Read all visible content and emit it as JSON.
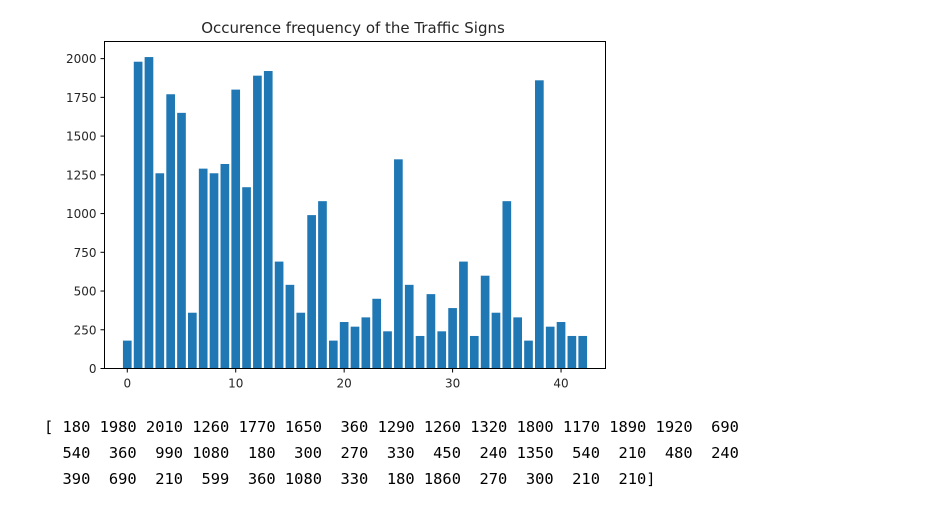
{
  "chart_data": {
    "type": "bar",
    "title": "Occurence frequency of the Traffic Signs",
    "xlabel": "",
    "ylabel": "",
    "x": [
      0,
      1,
      2,
      3,
      4,
      5,
      6,
      7,
      8,
      9,
      10,
      11,
      12,
      13,
      14,
      15,
      16,
      17,
      18,
      19,
      20,
      21,
      22,
      23,
      24,
      25,
      26,
      27,
      28,
      29,
      30,
      31,
      32,
      33,
      34,
      35,
      36,
      37,
      38,
      39,
      40,
      41,
      42
    ],
    "values": [
      180,
      1980,
      2010,
      1260,
      1770,
      1650,
      360,
      1290,
      1260,
      1320,
      1800,
      1170,
      1890,
      1920,
      690,
      540,
      360,
      990,
      1080,
      180,
      300,
      270,
      330,
      450,
      240,
      1350,
      540,
      210,
      480,
      240,
      390,
      690,
      210,
      599,
      360,
      1080,
      330,
      180,
      1860,
      270,
      300,
      210,
      210
    ],
    "bar_color": "#1f77b4",
    "xlim": [
      -2.1,
      44.1
    ],
    "ylim": [
      0,
      2110.5
    ],
    "xticks": [
      "0",
      "10",
      "20",
      "30",
      "40"
    ],
    "yticks": [
      "0",
      "250",
      "500",
      "750",
      "1000",
      "1250",
      "1500",
      "1750",
      "2000"
    ],
    "grid": false,
    "legend": false
  },
  "output": {
    "lines": [
      "[ 180 1980 2010 1260 1770 1650  360 1290 1260 1320 1800 1170 1890 1920  690",
      "  540  360  990 1080  180  300  270  330  450  240 1350  540  210  480  240",
      "  390  690  210  599  360 1080  330  180 1860  270  300  210  210]"
    ]
  }
}
